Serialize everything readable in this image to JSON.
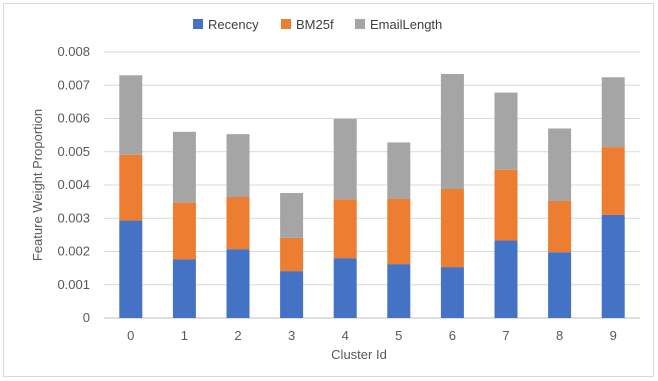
{
  "chart_data": {
    "type": "bar",
    "stacked": true,
    "title": "",
    "xlabel": "Cluster Id",
    "ylabel": "Feature Weight Proportion",
    "categories": [
      "0",
      "1",
      "2",
      "3",
      "4",
      "5",
      "6",
      "7",
      "8",
      "9"
    ],
    "ylim": [
      0,
      0.008
    ],
    "yticks": [
      "0",
      "0.001",
      "0.002",
      "0.003",
      "0.004",
      "0.005",
      "0.006",
      "0.007",
      "0.008"
    ],
    "ytick_values": [
      0,
      0.001,
      0.002,
      0.003,
      0.004,
      0.005,
      0.006,
      0.007,
      0.008
    ],
    "grid": true,
    "legend_position": "top",
    "series": [
      {
        "name": "Recency",
        "color": "#4472C4",
        "values": [
          0.00293,
          0.00176,
          0.00207,
          0.00141,
          0.0018,
          0.00162,
          0.00153,
          0.00233,
          0.00198,
          0.0031
        ]
      },
      {
        "name": "BM25f",
        "color": "#ED7D31",
        "values": [
          0.00198,
          0.00171,
          0.00157,
          0.001,
          0.00177,
          0.00196,
          0.00235,
          0.00213,
          0.00154,
          0.00204
        ]
      },
      {
        "name": "EmailLength",
        "color": "#A5A5A5",
        "values": [
          0.00239,
          0.00213,
          0.00189,
          0.00135,
          0.00242,
          0.0017,
          0.00346,
          0.00232,
          0.00218,
          0.0021
        ]
      }
    ]
  }
}
